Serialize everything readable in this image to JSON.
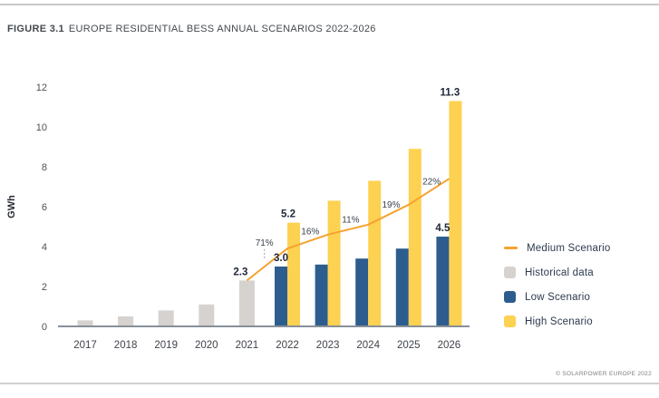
{
  "header": {
    "figure_label": "FIGURE 3.1",
    "title": "EUROPE RESIDENTIAL BESS ANNUAL SCENARIOS 2022-2026"
  },
  "footer": {
    "copyright": "© SOLARPOWER EUROPE 2022"
  },
  "colors": {
    "historical": "#d6d2cf",
    "low": "#2d5d8e",
    "high": "#fdd151",
    "medium": "#f6a230",
    "axis": "#879099",
    "callout_dash": "#9aa0a6"
  },
  "chart_data": {
    "type": "bar",
    "title": "EUROPE RESIDENTIAL BESS ANNUAL SCENARIOS 2022-2026",
    "xlabel": "",
    "ylabel": "GWh",
    "ylim": [
      0,
      12
    ],
    "yticks": [
      0,
      2,
      4,
      6,
      8,
      10,
      12
    ],
    "grid": false,
    "legend_position": "right",
    "categories": [
      "2017",
      "2018",
      "2019",
      "2020",
      "2021",
      "2022",
      "2023",
      "2024",
      "2025",
      "2026"
    ],
    "series": [
      {
        "name": "Historical data",
        "type": "bar",
        "color": "#d6d2cf",
        "values": [
          0.3,
          0.5,
          0.8,
          1.1,
          2.3,
          null,
          null,
          null,
          null,
          null
        ]
      },
      {
        "name": "Low Scenario",
        "type": "bar",
        "color": "#2d5d8e",
        "values": [
          null,
          null,
          null,
          null,
          null,
          3.0,
          3.1,
          3.4,
          3.9,
          4.5
        ]
      },
      {
        "name": "High Scenario",
        "type": "bar",
        "color": "#fdd151",
        "values": [
          null,
          null,
          null,
          null,
          null,
          5.2,
          6.3,
          7.3,
          8.9,
          11.3
        ]
      },
      {
        "name": "Medium Scenario",
        "type": "line",
        "color": "#f6a230",
        "values": [
          null,
          null,
          null,
          null,
          2.3,
          3.9,
          4.6,
          5.1,
          6.1,
          7.4
        ]
      }
    ],
    "bar_labels": [
      {
        "year": "2021",
        "series": "Historical data",
        "label": "2.3"
      },
      {
        "year": "2022",
        "series": "Low Scenario",
        "label": "3.0"
      },
      {
        "year": "2022",
        "series": "High Scenario",
        "label": "5.2"
      },
      {
        "year": "2026",
        "series": "Low Scenario",
        "label": "4.5"
      },
      {
        "year": "2026",
        "series": "High Scenario",
        "label": "11.3"
      }
    ],
    "growth_labels": [
      {
        "between": [
          "2021",
          "2022"
        ],
        "label": "71%",
        "callout": true
      },
      {
        "between": [
          "2022",
          "2023"
        ],
        "label": "16%",
        "callout": false
      },
      {
        "between": [
          "2023",
          "2024"
        ],
        "label": "11%",
        "callout": false
      },
      {
        "between": [
          "2024",
          "2025"
        ],
        "label": "19%",
        "callout": false
      },
      {
        "between": [
          "2025",
          "2026"
        ],
        "label": "22%",
        "callout": false
      }
    ]
  },
  "legend": {
    "items": [
      {
        "label": "Medium Scenario",
        "swatch": "line",
        "color": "#f6a230"
      },
      {
        "label": "Historical data",
        "swatch": "square",
        "color": "#d6d2cf"
      },
      {
        "label": "Low Scenario",
        "swatch": "square",
        "color": "#2d5d8e"
      },
      {
        "label": "High Scenario",
        "swatch": "square",
        "color": "#fdd151"
      }
    ]
  }
}
